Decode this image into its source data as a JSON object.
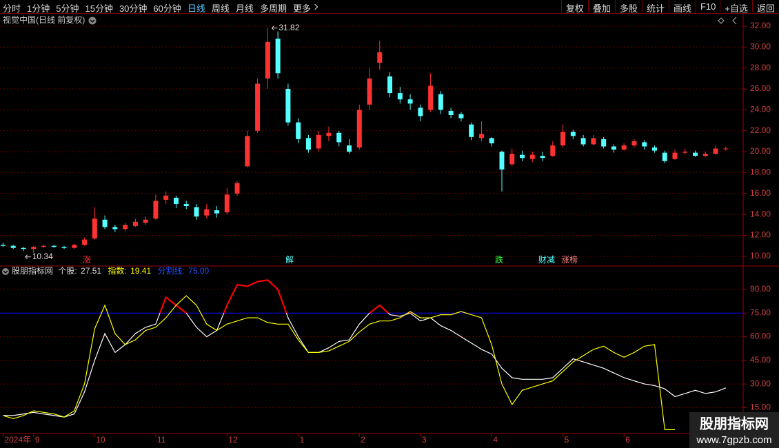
{
  "toolbar": {
    "left": [
      "分时",
      "1分钟",
      "5分钟",
      "15分钟",
      "30分钟",
      "60分钟",
      "日线",
      "周线",
      "月线",
      "多周期",
      "更多"
    ],
    "right": [
      "复权",
      "叠加",
      "多股",
      "统计",
      "画线",
      "F10",
      "+自选",
      "返回"
    ]
  },
  "chart_data": [
    {
      "type": "candlestick",
      "title": "视觉中国(日线 前复权)",
      "open": [
        11.1,
        11.0,
        10.8,
        10.7,
        10.9,
        11.0,
        10.9,
        10.8,
        11.1,
        11.7,
        13.5,
        12.8,
        12.6,
        12.9,
        13.2,
        13.6,
        15.4,
        15.6,
        15.0,
        14.7,
        13.9,
        14.4,
        14.2,
        16.0,
        18.6,
        22.0,
        27.0,
        30.8,
        26.0,
        22.8,
        21.3,
        20.3,
        21.5,
        21.8,
        20.6,
        20.4,
        24.5,
        28.5,
        27.2,
        25.6,
        25.0,
        24.2,
        24.0,
        25.5,
        23.9,
        23.6,
        22.6,
        21.3,
        21.3,
        20.0,
        18.8,
        19.7,
        19.3,
        19.6,
        19.6,
        20.6,
        21.9,
        21.3,
        20.7,
        21.2,
        20.5,
        20.2,
        20.6,
        20.9,
        20.4,
        19.9,
        19.3,
        19.9,
        19.9,
        19.6,
        19.8,
        20.3
      ],
      "high": [
        11.3,
        11.1,
        10.9,
        11.0,
        11.1,
        11.1,
        11.0,
        11.2,
        11.8,
        14.7,
        13.9,
        13.0,
        13.2,
        13.6,
        13.8,
        15.9,
        16.2,
        15.8,
        15.3,
        15.0,
        15.0,
        14.8,
        16.5,
        17.2,
        22.0,
        27.0,
        31.82,
        31.5,
        26.5,
        23.2,
        21.6,
        22.0,
        22.4,
        22.0,
        21.2,
        24.5,
        28.0,
        30.6,
        27.6,
        26.2,
        25.5,
        24.5,
        27.5,
        25.8,
        24.2,
        23.8,
        22.8,
        22.9,
        21.4,
        20.1,
        20.3,
        20.1,
        20.0,
        20.0,
        21.0,
        22.6,
        22.1,
        21.6,
        21.6,
        21.4,
        20.7,
        20.8,
        21.2,
        21.1,
        20.6,
        20.1,
        20.2,
        20.3,
        20.1,
        20.0,
        20.6,
        20.5
      ],
      "low": [
        10.9,
        10.7,
        10.5,
        10.34,
        10.8,
        10.8,
        10.7,
        10.7,
        11.0,
        11.6,
        12.6,
        12.3,
        12.4,
        12.8,
        13.0,
        13.5,
        15.0,
        14.6,
        14.5,
        13.5,
        13.6,
        13.7,
        14.0,
        15.8,
        18.5,
        21.8,
        26.0,
        27.0,
        22.5,
        20.8,
        19.9,
        20.0,
        21.0,
        20.5,
        19.8,
        20.2,
        24.0,
        27.8,
        25.2,
        24.6,
        24.0,
        22.9,
        23.8,
        23.6,
        23.2,
        22.9,
        21.1,
        21.0,
        20.5,
        16.2,
        18.6,
        19.1,
        19.0,
        19.1,
        19.5,
        20.4,
        21.2,
        20.5,
        20.6,
        20.3,
        19.9,
        20.1,
        20.4,
        20.2,
        19.9,
        18.9,
        19.2,
        19.7,
        19.5,
        19.5,
        19.7,
        20.1
      ],
      "close": [
        11.0,
        10.8,
        10.7,
        10.9,
        11.0,
        10.9,
        10.8,
        11.1,
        11.6,
        13.6,
        12.8,
        12.6,
        13.0,
        13.3,
        13.5,
        15.3,
        15.8,
        15.0,
        14.8,
        13.8,
        14.5,
        14.1,
        15.9,
        17.0,
        21.5,
        26.5,
        30.5,
        27.5,
        22.8,
        21.2,
        20.2,
        21.6,
        21.8,
        20.9,
        20.0,
        24.0,
        27.0,
        29.5,
        25.6,
        25.0,
        24.6,
        23.4,
        26.3,
        24.0,
        23.5,
        23.2,
        21.4,
        21.7,
        20.8,
        18.3,
        19.8,
        19.4,
        19.7,
        19.4,
        20.6,
        21.9,
        21.5,
        20.7,
        21.3,
        20.5,
        20.2,
        20.6,
        21.0,
        20.5,
        20.1,
        19.1,
        19.9,
        20.0,
        19.6,
        19.8,
        20.3,
        20.3
      ],
      "up_color": "#ff3232",
      "down_color": "#54ffff",
      "max_label": 31.82,
      "min_label": 10.34,
      "markers": [
        "涨",
        "解",
        "跌",
        "财减",
        "涨榜"
      ],
      "xlim": [
        -0.3,
        72.5
      ],
      "ylim": [
        9.2,
        33.05
      ],
      "yticks": [
        {
          "value": 10,
          "label": "10.00"
        },
        {
          "value": 12,
          "label": "12.00"
        },
        {
          "value": 14,
          "label": "14.00"
        },
        {
          "value": 16,
          "label": "16.00"
        },
        {
          "value": 18,
          "label": "18.00"
        },
        {
          "value": 20,
          "label": "20.00"
        },
        {
          "value": 22,
          "label": "22.00"
        },
        {
          "value": 24,
          "label": "24.00"
        },
        {
          "value": 26,
          "label": "26.00"
        },
        {
          "value": 28,
          "label": "28.00"
        },
        {
          "value": 30,
          "label": "30.00"
        },
        {
          "value": 32,
          "label": "32.00"
        }
      ],
      "grid": true
    },
    {
      "type": "line",
      "title": "股朋指标网",
      "series": [
        {
          "name": "个股:",
          "color": "#ffffff",
          "values": [
            10,
            10,
            11,
            12,
            11,
            10,
            9,
            11,
            25,
            45,
            62,
            50,
            55,
            62,
            66,
            68,
            85,
            80,
            75,
            66,
            60,
            64,
            80,
            93,
            92,
            95,
            96,
            90,
            72,
            60,
            50,
            50,
            53,
            57,
            58,
            68,
            75,
            80,
            74,
            73,
            75,
            70,
            72,
            67,
            64,
            60,
            56,
            52,
            49,
            40,
            34,
            33,
            33,
            33,
            34,
            40,
            46,
            44,
            42,
            40,
            37,
            34,
            32,
            30,
            29,
            27,
            22,
            24,
            26,
            24,
            25,
            27.51
          ]
        },
        {
          "name": "指数:",
          "color": "#ffff00",
          "values": [
            10,
            8,
            10,
            13,
            12,
            11,
            9,
            13,
            30,
            65,
            80,
            62,
            55,
            58,
            64,
            66,
            72,
            80,
            86,
            80,
            68,
            64,
            68,
            70,
            72,
            72,
            69,
            68,
            68,
            58,
            50,
            50,
            51,
            54,
            57,
            63,
            68,
            70,
            70,
            72,
            76,
            72,
            72,
            74,
            74,
            76,
            74,
            72,
            55,
            30,
            17,
            26,
            28,
            30,
            32,
            38,
            44,
            48,
            52,
            54,
            50,
            47,
            50,
            54,
            55,
            1,
            1,
            null,
            null,
            null,
            null,
            19.41
          ]
        }
      ],
      "threshold": {
        "name": "分割线:",
        "value": 75,
        "label": "75.00",
        "color": "#0000ff",
        "highlight_color": "#ff0000"
      },
      "xlim": [
        -0.3,
        72.5
      ],
      "ylim": [
        -1,
        104
      ],
      "yticks": [
        {
          "value": 15,
          "label": "15.00"
        },
        {
          "value": 30,
          "label": "30.00"
        },
        {
          "value": 45,
          "label": "45.00"
        },
        {
          "value": 60,
          "label": "60.00"
        },
        {
          "value": 75,
          "label": "75.00"
        },
        {
          "value": 90,
          "label": "90.00"
        }
      ],
      "xticks": [
        {
          "value": 0,
          "label": "2024年"
        },
        {
          "value": 3,
          "label": "9"
        },
        {
          "value": 9,
          "label": "10"
        },
        {
          "value": 15,
          "label": "11"
        },
        {
          "value": 22,
          "label": "12"
        },
        {
          "value": 29,
          "label": "1"
        },
        {
          "value": 35,
          "label": "2"
        },
        {
          "value": 41,
          "label": "3"
        },
        {
          "value": 48,
          "label": "4"
        },
        {
          "value": 55,
          "label": "5"
        },
        {
          "value": 61,
          "label": "6"
        }
      ],
      "grid": true
    }
  ],
  "watermark": {
    "title": "股朋指标网",
    "url": "www.7gpzb.com"
  }
}
